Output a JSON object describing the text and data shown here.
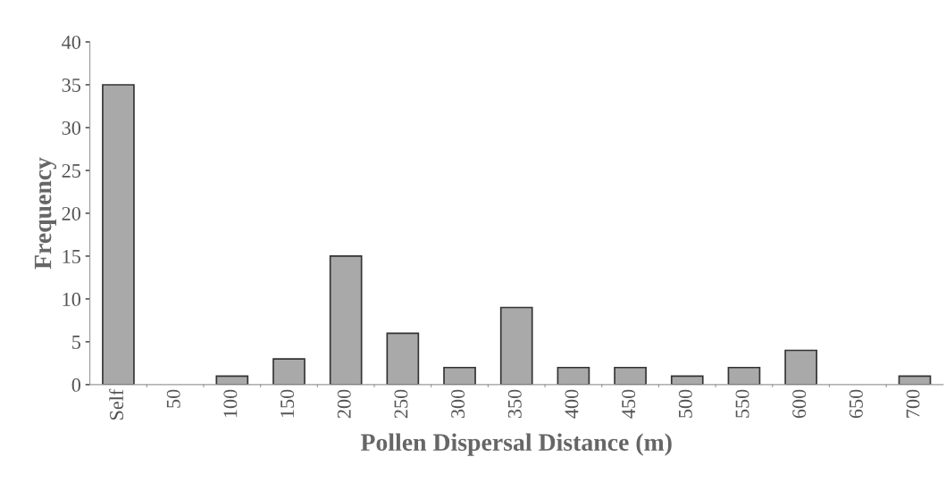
{
  "chart_data": {
    "type": "bar",
    "xlabel": "Pollen Dispersal Distance (m)",
    "ylabel": "Frequency",
    "categories": [
      "Self",
      "50",
      "100",
      "150",
      "200",
      "250",
      "300",
      "350",
      "400",
      "450",
      "500",
      "550",
      "600",
      "650",
      "700"
    ],
    "values": [
      35,
      0,
      1,
      3,
      15,
      6,
      2,
      9,
      2,
      2,
      1,
      2,
      4,
      0,
      1
    ],
    "color": "#a9a9a9",
    "ylim": [
      0,
      40
    ],
    "yticks": [
      0,
      5,
      10,
      15,
      20,
      25,
      30,
      35,
      40
    ],
    "grid": false
  }
}
